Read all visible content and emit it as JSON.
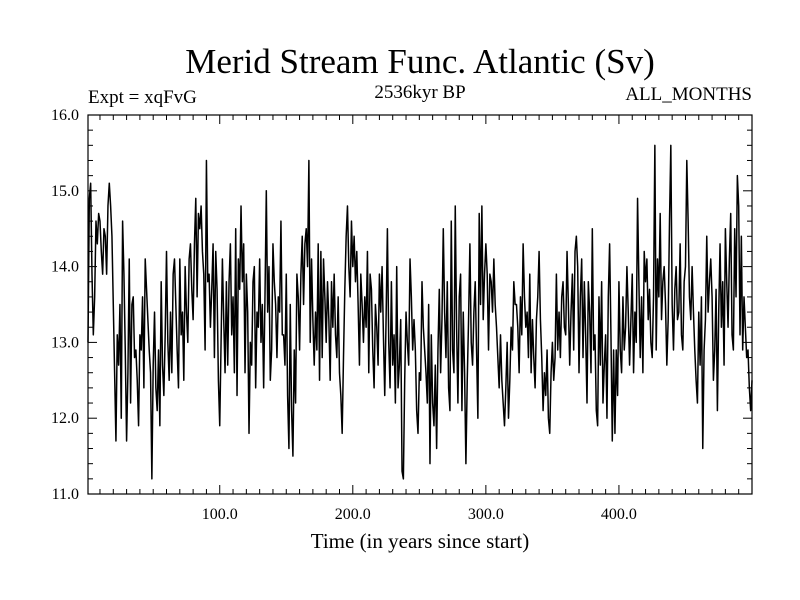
{
  "chart_data": {
    "type": "line",
    "title": "Merid Stream Func. Atlantic (Sv)",
    "subtitle_left": "Expt = xqFvG",
    "subtitle_center": "2536kyr BP",
    "subtitle_right": "ALL_MONTHS",
    "xlabel": "Time (in years since start)",
    "ylabel": "",
    "xlim": [
      1,
      500
    ],
    "ylim": [
      11.0,
      16.0
    ],
    "x_ticks": [
      100,
      200,
      300,
      400
    ],
    "x_tick_labels": [
      "100.0",
      "200.0",
      "300.0",
      "400.0"
    ],
    "y_ticks": [
      11,
      12,
      13,
      14,
      15,
      16
    ],
    "y_tick_labels": [
      "11.0",
      "12.0",
      "13.0",
      "14.0",
      "15.0",
      "16.0"
    ],
    "series": [
      {
        "name": "Merid Stream Func. Atlantic",
        "color": "#000000",
        "x_start": 1,
        "x_step": 1,
        "values": [
          13.0,
          14.9,
          15.1,
          13.9,
          13.1,
          13.6,
          14.6,
          14.3,
          14.7,
          14.6,
          14.2,
          13.9,
          14.5,
          14.4,
          13.9,
          14.8,
          15.1,
          14.8,
          14.4,
          13.5,
          12.6,
          11.7,
          13.1,
          12.7,
          13.5,
          12.0,
          14.6,
          13.9,
          12.9,
          11.7,
          12.6,
          14.1,
          12.2,
          13.5,
          13.6,
          12.8,
          12.9,
          12.5,
          11.9,
          13.1,
          12.9,
          13.6,
          12.4,
          14.1,
          13.7,
          13.3,
          12.9,
          12.6,
          11.2,
          12.7,
          13.4,
          12.4,
          12.1,
          12.9,
          11.9,
          13.8,
          12.7,
          12.3,
          13.1,
          14.2,
          13.0,
          12.5,
          13.4,
          12.6,
          13.9,
          14.1,
          13.5,
          12.9,
          12.4,
          14.1,
          13.1,
          13.4,
          12.5,
          14.0,
          13.4,
          13.0,
          14.1,
          14.3,
          13.7,
          13.3,
          14.3,
          14.9,
          13.6,
          14.7,
          14.5,
          14.8,
          14.2,
          13.9,
          12.9,
          15.4,
          13.8,
          13.9,
          13.2,
          13.7,
          14.3,
          12.8,
          14.2,
          13.7,
          12.5,
          11.9,
          13.0,
          14.1,
          13.3,
          12.6,
          13.8,
          12.7,
          13.8,
          14.3,
          13.1,
          13.6,
          12.6,
          14.5,
          12.3,
          14.1,
          13.7,
          14.8,
          13.8,
          14.3,
          12.6,
          13.9,
          13.4,
          11.8,
          13.0,
          12.7,
          13.8,
          14.0,
          12.4,
          13.4,
          13.2,
          14.1,
          13.0,
          13.5,
          12.4,
          13.6,
          15.0,
          13.4,
          14.0,
          12.5,
          12.9,
          14.3,
          13.8,
          13.5,
          12.8,
          13.6,
          13.4,
          14.6,
          13.1,
          13.1,
          12.7,
          13.9,
          12.3,
          11.6,
          13.5,
          12.1,
          11.5,
          12.9,
          12.2,
          13.9,
          13.6,
          12.9,
          13.9,
          14.4,
          13.5,
          14.3,
          14.5,
          14.0,
          15.4,
          13.0,
          14.1,
          13.3,
          12.7,
          13.4,
          12.9,
          14.3,
          12.5,
          14.2,
          12.8,
          14.1,
          13.6,
          13.0,
          13.8,
          13.3,
          12.5,
          13.8,
          13.2,
          13.9,
          13.1,
          12.8,
          13.6,
          12.6,
          12.3,
          11.8,
          12.8,
          13.7,
          14.4,
          14.8,
          14.0,
          13.6,
          14.6,
          14.0,
          14.4,
          13.8,
          14.2,
          13.5,
          12.7,
          13.9,
          13.5,
          13.0,
          13.6,
          13.2,
          14.2,
          12.6,
          13.9,
          13.7,
          12.9,
          12.4,
          13.5,
          13.2,
          12.7,
          13.9,
          13.4,
          14.0,
          13.1,
          12.3,
          13.3,
          14.5,
          13.0,
          12.4,
          13.8,
          12.7,
          13.1,
          12.2,
          14.0,
          12.4,
          12.7,
          13.3,
          11.3,
          11.2,
          12.5,
          13.4,
          13.0,
          12.7,
          14.1,
          13.6,
          12.9,
          13.3,
          12.9,
          12.1,
          11.8,
          12.6,
          12.5,
          13.8,
          13.2,
          12.9,
          12.6,
          12.2,
          13.5,
          11.4,
          13.1,
          12.2,
          11.9,
          12.7,
          11.6,
          12.9,
          13.7,
          12.6,
          13.3,
          14.5,
          13.4,
          12.8,
          13.8,
          12.4,
          12.1,
          14.6,
          12.9,
          12.6,
          14.8,
          13.2,
          12.2,
          13.6,
          13.9,
          12.1,
          13.4,
          12.6,
          11.4,
          12.5,
          13.3,
          14.3,
          13.0,
          12.7,
          13.4,
          13.8,
          12.9,
          12.0,
          14.7,
          13.5,
          14.8,
          13.3,
          13.9,
          14.3,
          13.9,
          12.9,
          13.9,
          13.8,
          13.4,
          14.1,
          13.5,
          13.2,
          12.8,
          12.4,
          13.1,
          12.5,
          12.2,
          11.9,
          12.4,
          13.0,
          12.0,
          12.5,
          13.2,
          12.9,
          13.8,
          13.5,
          13.5,
          13.2,
          12.6,
          13.6,
          13.1,
          14.3,
          13.6,
          13.2,
          13.4,
          12.8,
          13.9,
          12.6,
          13.3,
          12.8,
          12.4,
          13.3,
          13.6,
          14.2,
          13.3,
          12.8,
          12.1,
          12.6,
          12.3,
          12.9,
          12.0,
          11.8,
          12.6,
          13.0,
          12.5,
          12.8,
          13.9,
          12.9,
          13.4,
          12.8,
          13.6,
          13.8,
          13.2,
          13.1,
          14.2,
          13.5,
          12.7,
          13.4,
          13.9,
          12.9,
          14.2,
          14.4,
          14.0,
          12.6,
          13.6,
          14.1,
          12.8,
          13.8,
          13.1,
          12.2,
          13.8,
          13.4,
          12.6,
          14.5,
          12.9,
          13.1,
          12.1,
          11.9,
          13.6,
          12.7,
          13.8,
          12.2,
          12.7,
          13.1,
          12.0,
          13.6,
          14.3,
          13.1,
          11.7,
          12.9,
          11.8,
          12.9,
          12.3,
          13.8,
          12.9,
          12.6,
          13.6,
          12.9,
          13.2,
          14.0,
          13.4,
          12.7,
          13.3,
          13.9,
          12.6,
          13.4,
          13.0,
          14.9,
          13.8,
          12.8,
          13.6,
          12.6,
          14.2,
          13.8,
          14.1,
          13.3,
          13.7,
          13.0,
          12.8,
          13.6,
          15.6,
          12.9,
          14.1,
          13.6,
          14.7,
          13.3,
          13.8,
          14.0,
          13.5,
          12.7,
          13.3,
          14.6,
          15.6,
          13.5,
          12.9,
          13.7,
          14.0,
          13.3,
          13.4,
          14.3,
          13.1,
          12.9,
          13.8,
          14.0,
          15.4,
          14.6,
          13.6,
          13.3,
          14.0,
          13.4,
          12.9,
          12.5,
          12.2,
          13.4,
          12.7,
          13.6,
          11.6,
          12.9,
          13.3,
          14.4,
          13.4,
          13.8,
          14.1,
          13.6,
          12.5,
          12.9,
          13.7,
          12.1,
          13.4,
          14.3,
          13.2,
          13.8,
          12.7,
          14.5,
          13.8,
          13.2,
          14.1,
          14.7,
          13.1,
          12.9,
          14.5,
          13.6,
          15.2,
          14.8,
          13.1,
          14.4,
          12.9,
          13.6,
          13.2,
          12.8,
          12.9,
          12.4,
          12.1,
          12.5
        ]
      }
    ]
  }
}
